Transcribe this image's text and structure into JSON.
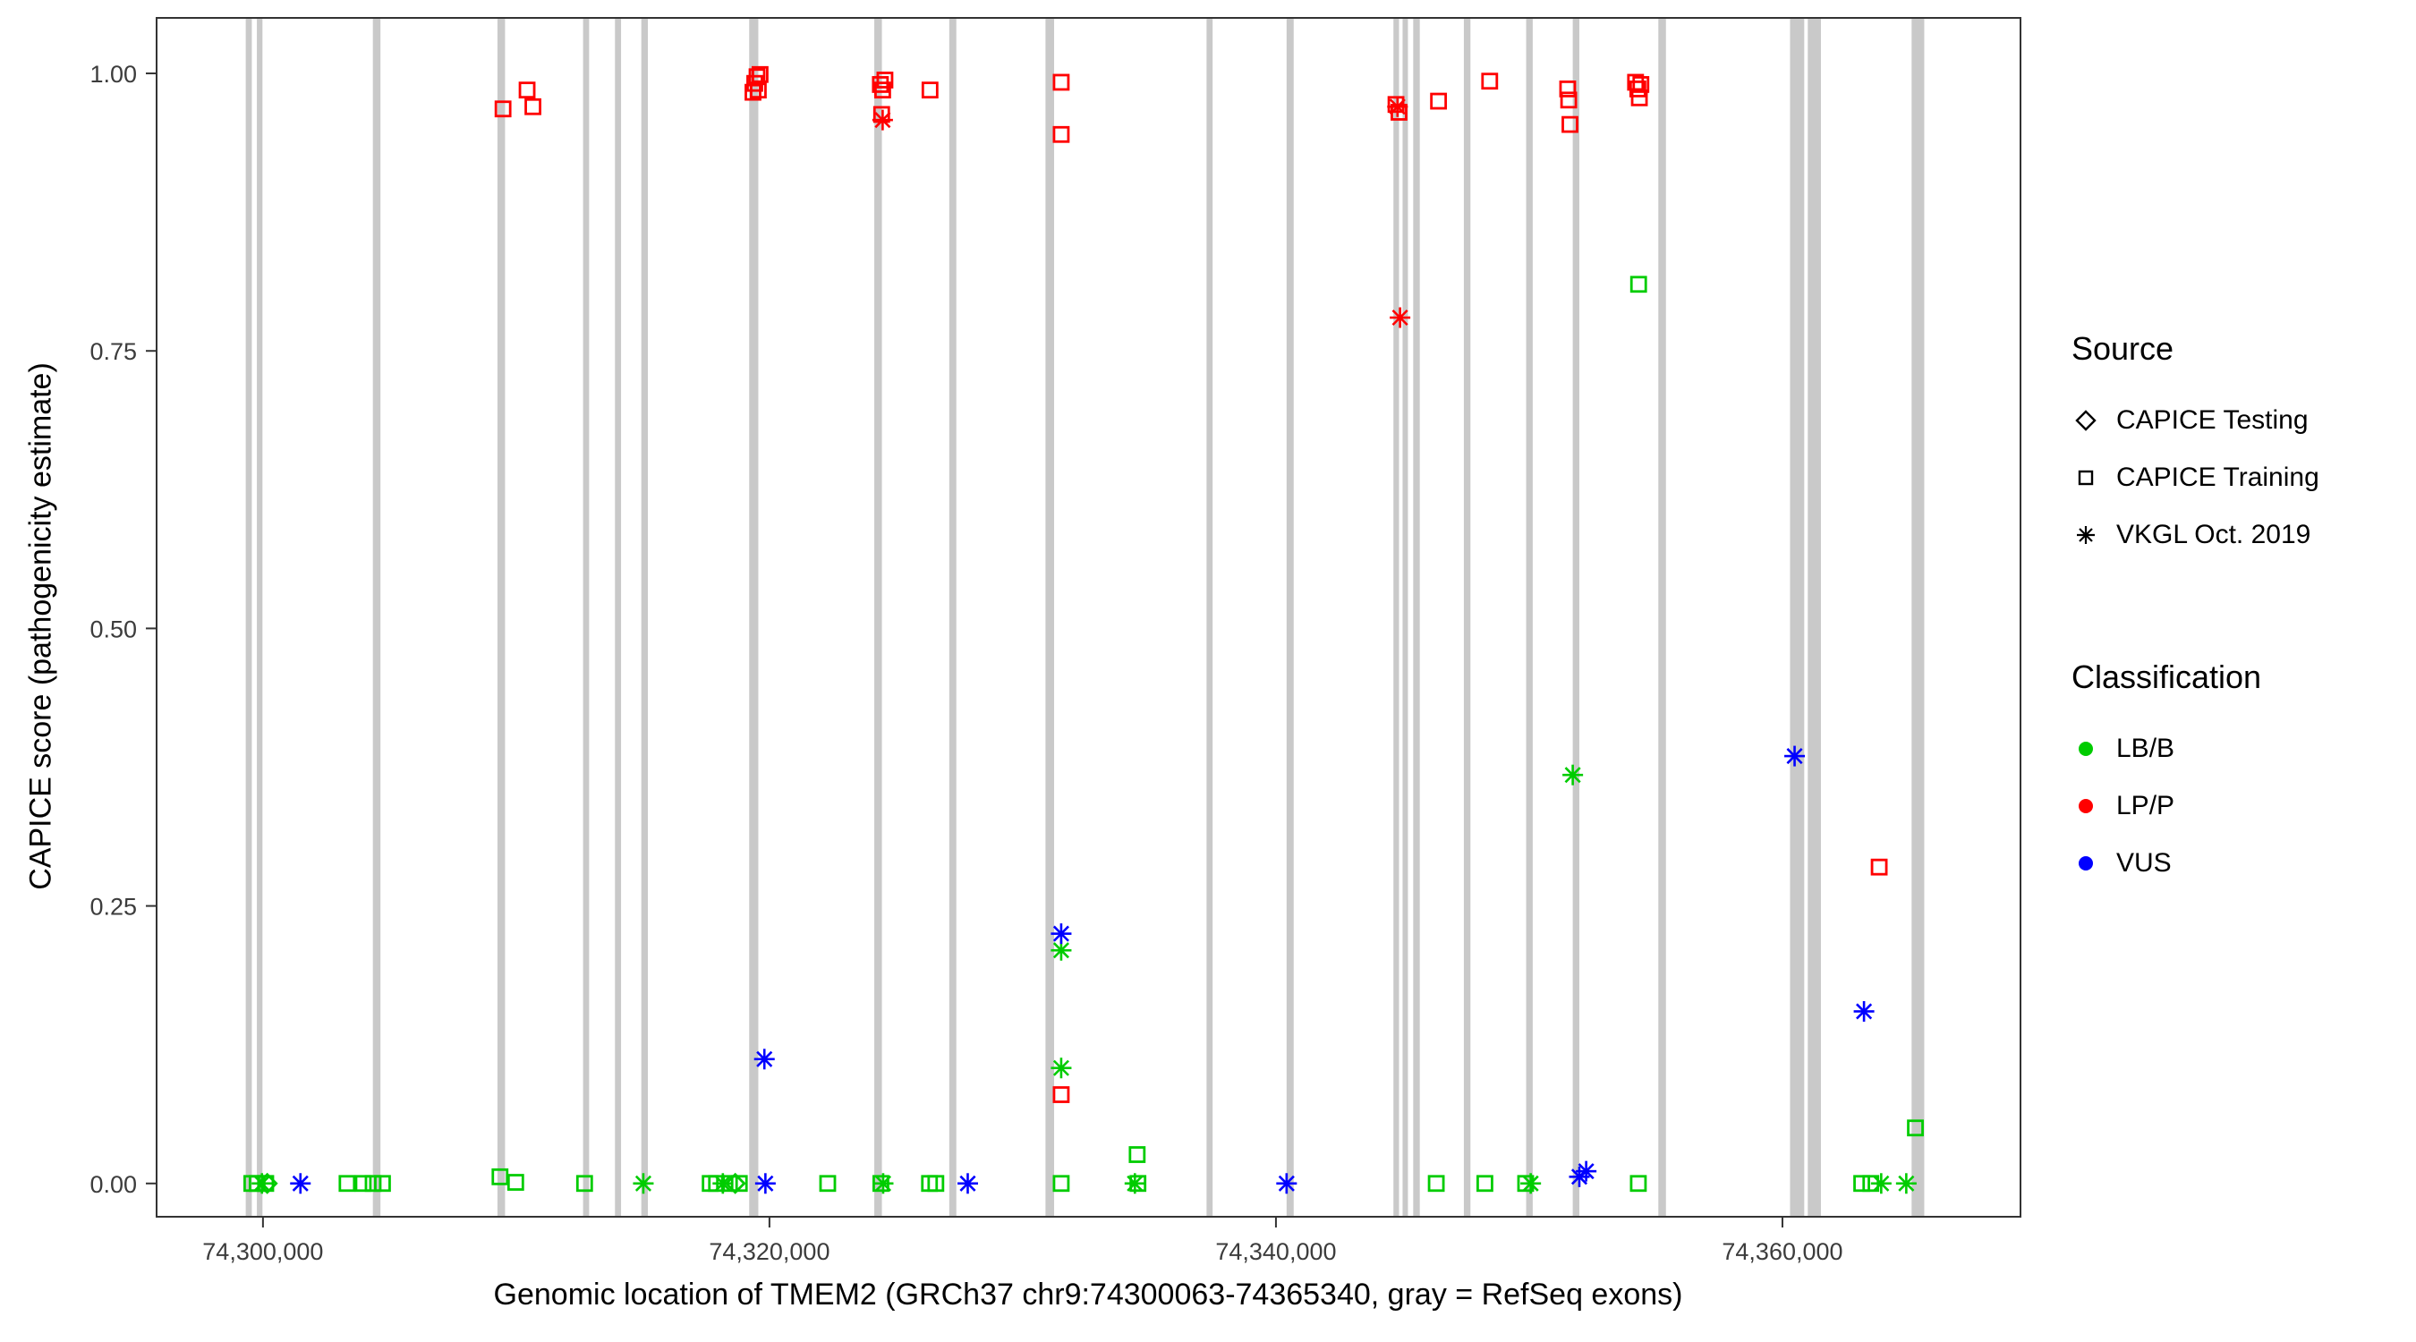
{
  "chart_data": {
    "type": "scatter",
    "title": "",
    "xlabel": "Genomic location of TMEM2 (GRCh37 chr9:74300063-74365340, gray = RefSeq exons)",
    "ylabel": "CAPICE score (pathogenicity estimate)",
    "xlim": [
      74295800,
      74369400
    ],
    "ylim": [
      -0.03,
      1.05
    ],
    "grid": false,
    "legend_position": "right",
    "x_ticks": [
      {
        "v": 74300000,
        "label": "74,300,000"
      },
      {
        "v": 74320000,
        "label": "74,320,000"
      },
      {
        "v": 74340000,
        "label": "74,340,000"
      },
      {
        "v": 74360000,
        "label": "74,360,000"
      }
    ],
    "y_ticks": [
      {
        "v": 0.0,
        "label": "0.00"
      },
      {
        "v": 0.25,
        "label": "0.25"
      },
      {
        "v": 0.5,
        "label": "0.50"
      },
      {
        "v": 0.75,
        "label": "0.75"
      },
      {
        "v": 1.0,
        "label": "1.00"
      }
    ],
    "exon_color": "#C9C9C9",
    "shape_by_source": {
      "testing": "diamond",
      "training": "square",
      "vkgl": "asterisk"
    },
    "color_by_class": {
      "LB/B": "#00CC00",
      "LP/P": "#FF0000",
      "VUS": "#0000FF"
    },
    "exons": [
      [
        74299320,
        74299560
      ],
      [
        74299760,
        74299980
      ],
      [
        74304340,
        74304640
      ],
      [
        74309260,
        74309560
      ],
      [
        74312640,
        74312880
      ],
      [
        74313900,
        74314140
      ],
      [
        74314940,
        74315200
      ],
      [
        74319200,
        74319560
      ],
      [
        74324140,
        74324440
      ],
      [
        74327100,
        74327380
      ],
      [
        74330900,
        74331240
      ],
      [
        74337260,
        74337500
      ],
      [
        74340420,
        74340700
      ],
      [
        74344640,
        74344860
      ],
      [
        74345000,
        74345200
      ],
      [
        74345420,
        74345680
      ],
      [
        74347420,
        74347680
      ],
      [
        74349880,
        74350140
      ],
      [
        74351720,
        74351980
      ],
      [
        74355100,
        74355400
      ],
      [
        74360300,
        74360860
      ],
      [
        74361000,
        74361520
      ],
      [
        74365100,
        74365600
      ]
    ],
    "points": [
      [
        74309480,
        0.968,
        "training",
        "LP/P"
      ],
      [
        74310430,
        0.985,
        "training",
        "LP/P"
      ],
      [
        74310660,
        0.97,
        "training",
        "LP/P"
      ],
      [
        74319350,
        0.983,
        "training",
        "LP/P"
      ],
      [
        74319420,
        0.991,
        "training",
        "LP/P"
      ],
      [
        74319510,
        0.997,
        "training",
        "LP/P"
      ],
      [
        74319630,
        0.999,
        "training",
        "LP/P"
      ],
      [
        74319560,
        0.985,
        "training",
        "LP/P"
      ],
      [
        74324380,
        0.99,
        "training",
        "LP/P"
      ],
      [
        74324470,
        0.985,
        "training",
        "LP/P"
      ],
      [
        74324560,
        0.994,
        "training",
        "LP/P"
      ],
      [
        74324430,
        0.963,
        "training",
        "LP/P"
      ],
      [
        74324470,
        0.958,
        "vkgl",
        "LP/P"
      ],
      [
        74326340,
        0.985,
        "training",
        "LP/P"
      ],
      [
        74331520,
        0.992,
        "training",
        "LP/P"
      ],
      [
        74331520,
        0.945,
        "training",
        "LP/P"
      ],
      [
        74331520,
        0.08,
        "training",
        "LP/P"
      ],
      [
        74344740,
        0.972,
        "training",
        "LP/P"
      ],
      [
        74344860,
        0.965,
        "training",
        "LP/P"
      ],
      [
        74344800,
        0.97,
        "vkgl",
        "LP/P"
      ],
      [
        74344900,
        0.78,
        "vkgl",
        "LP/P"
      ],
      [
        74346420,
        0.975,
        "training",
        "LP/P"
      ],
      [
        74348440,
        0.993,
        "training",
        "LP/P"
      ],
      [
        74351520,
        0.986,
        "training",
        "LP/P"
      ],
      [
        74351560,
        0.976,
        "training",
        "LP/P"
      ],
      [
        74351610,
        0.954,
        "training",
        "LP/P"
      ],
      [
        74354200,
        0.992,
        "training",
        "LP/P"
      ],
      [
        74354290,
        0.986,
        "training",
        "LP/P"
      ],
      [
        74354350,
        0.978,
        "training",
        "LP/P"
      ],
      [
        74354410,
        0.99,
        "training",
        "LP/P"
      ],
      [
        74363820,
        0.285,
        "training",
        "LP/P"
      ],
      [
        74354320,
        0.81,
        "training",
        "LB/B"
      ],
      [
        74351720,
        0.368,
        "vkgl",
        "LB/B"
      ],
      [
        74331520,
        0.21,
        "vkgl",
        "LB/B"
      ],
      [
        74331520,
        0.104,
        "vkgl",
        "LB/B"
      ],
      [
        74334520,
        0.026,
        "training",
        "LB/B"
      ],
      [
        74365250,
        0.05,
        "training",
        "LB/B"
      ],
      [
        74299560,
        0,
        "training",
        "LB/B"
      ],
      [
        74299770,
        0,
        "training",
        "LB/B"
      ],
      [
        74299960,
        0,
        "vkgl",
        "LB/B"
      ],
      [
        74300110,
        0,
        "training",
        "LB/B"
      ],
      [
        74300170,
        0,
        "testing",
        "LB/B"
      ],
      [
        74303320,
        0,
        "training",
        "LB/B"
      ],
      [
        74303960,
        0,
        "training",
        "LB/B"
      ],
      [
        74304350,
        0,
        "training",
        "LB/B"
      ],
      [
        74304720,
        0,
        "training",
        "LB/B"
      ],
      [
        74309360,
        0.006,
        "training",
        "LB/B"
      ],
      [
        74309980,
        0.001,
        "training",
        "LB/B"
      ],
      [
        74312700,
        0,
        "training",
        "LB/B"
      ],
      [
        74315020,
        0,
        "vkgl",
        "LB/B"
      ],
      [
        74317660,
        0,
        "training",
        "LB/B"
      ],
      [
        74317910,
        0,
        "training",
        "LB/B"
      ],
      [
        74318160,
        0,
        "vkgl",
        "LB/B"
      ],
      [
        74318420,
        0,
        "training",
        "LB/B"
      ],
      [
        74318650,
        0,
        "testing",
        "LB/B"
      ],
      [
        74318810,
        0,
        "training",
        "LB/B"
      ],
      [
        74322300,
        0,
        "training",
        "LB/B"
      ],
      [
        74324400,
        0,
        "training",
        "LB/B"
      ],
      [
        74324490,
        0,
        "vkgl",
        "LB/B"
      ],
      [
        74326320,
        0,
        "training",
        "LB/B"
      ],
      [
        74326570,
        0,
        "training",
        "LB/B"
      ],
      [
        74331520,
        0,
        "training",
        "LB/B"
      ],
      [
        74334430,
        0,
        "vkgl",
        "LB/B"
      ],
      [
        74334550,
        0,
        "training",
        "LB/B"
      ],
      [
        74346330,
        0,
        "training",
        "LB/B"
      ],
      [
        74348250,
        0,
        "training",
        "LB/B"
      ],
      [
        74349860,
        0,
        "training",
        "LB/B"
      ],
      [
        74350060,
        0,
        "vkgl",
        "LB/B"
      ],
      [
        74354310,
        0,
        "training",
        "LB/B"
      ],
      [
        74363130,
        0,
        "training",
        "LB/B"
      ],
      [
        74363490,
        0,
        "training",
        "LB/B"
      ],
      [
        74363900,
        0,
        "vkgl",
        "LB/B"
      ],
      [
        74364890,
        0,
        "vkgl",
        "LB/B"
      ],
      [
        74301480,
        0,
        "vkgl",
        "VUS"
      ],
      [
        74319800,
        0.112,
        "vkgl",
        "VUS"
      ],
      [
        74319840,
        0,
        "vkgl",
        "VUS"
      ],
      [
        74327830,
        0,
        "vkgl",
        "VUS"
      ],
      [
        74331520,
        0.225,
        "vkgl",
        "VUS"
      ],
      [
        74340420,
        0,
        "vkgl",
        "VUS"
      ],
      [
        74351980,
        0.006,
        "vkgl",
        "VUS"
      ],
      [
        74352250,
        0.011,
        "vkgl",
        "VUS"
      ],
      [
        74360480,
        0.385,
        "vkgl",
        "VUS"
      ],
      [
        74363220,
        0.155,
        "vkgl",
        "VUS"
      ]
    ]
  },
  "legend": {
    "source": {
      "title": "Source",
      "items": [
        {
          "label": "CAPICE Testing",
          "shape": "diamond"
        },
        {
          "label": "CAPICE Training",
          "shape": "square"
        },
        {
          "label": "VKGL Oct. 2019",
          "shape": "asterisk"
        }
      ]
    },
    "classification": {
      "title": "Classification",
      "items": [
        {
          "label": "LB/B",
          "color": "#00CC00"
        },
        {
          "label": "LP/P",
          "color": "#FF0000"
        },
        {
          "label": "VUS",
          "color": "#0000FF"
        }
      ]
    }
  }
}
